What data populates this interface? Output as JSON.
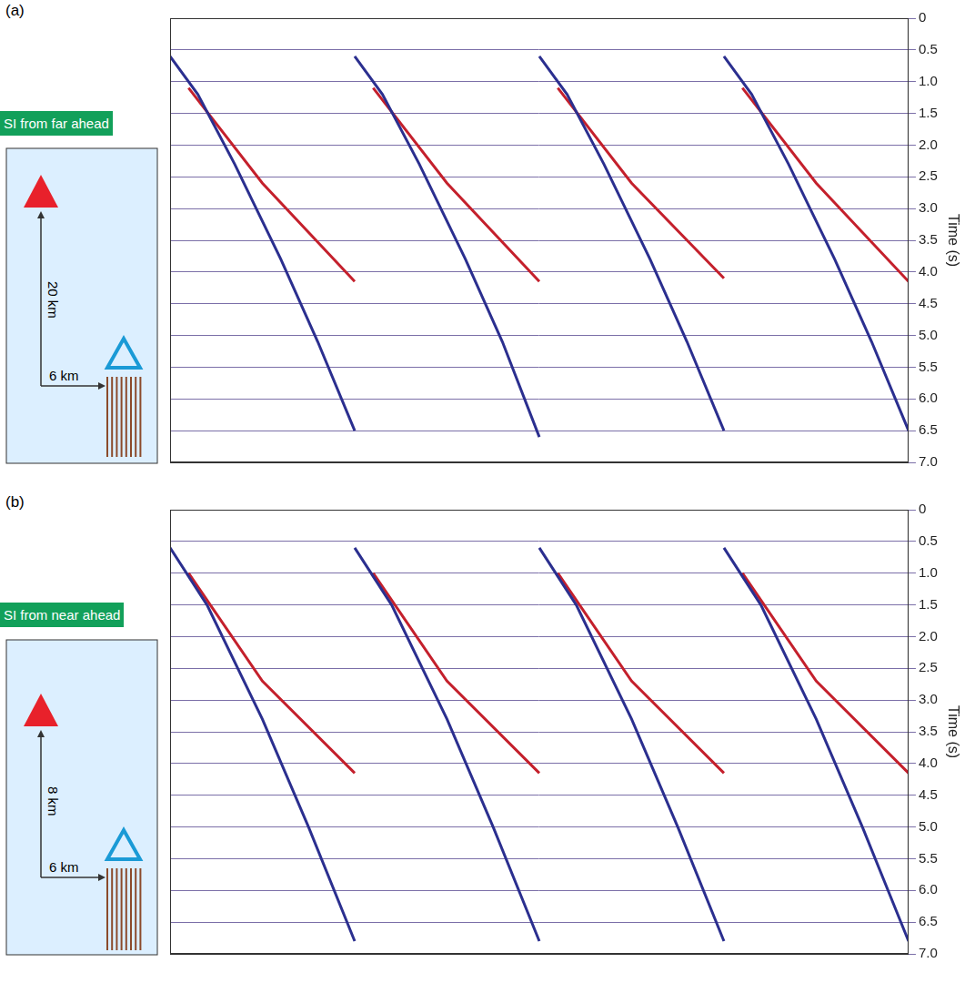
{
  "chart_data": [
    {
      "type": "line",
      "panel_label": "(a)",
      "annotations": {
        "banner": "SI from far ahead",
        "vertical": "20 km",
        "horizontal": "6 km"
      },
      "y_label": "Time (s)",
      "xlim": [
        0,
        4
      ],
      "ylim": [
        0,
        7
      ],
      "yticks": [
        0,
        0.5,
        {
          "value": 1,
          "label": "1.0"
        },
        1.5,
        {
          "value": 2,
          "label": "2.0"
        },
        2.5,
        {
          "value": 3,
          "label": "3.0"
        },
        3.5,
        {
          "value": 4,
          "label": "4.0"
        },
        4.5,
        {
          "value": 5,
          "label": "5.0"
        },
        5.5,
        {
          "value": 6,
          "label": "6.0"
        },
        6.5,
        {
          "value": 7,
          "label": "7.0"
        }
      ],
      "grid": true,
      "tick_labels": "y",
      "series": [
        {
          "color": "#2b2f8f",
          "x": [
            0,
            0.15,
            0.35,
            0.6,
            0.8,
            1.0
          ],
          "values": [
            0.6,
            1.2,
            2.3,
            3.8,
            5.1,
            6.5
          ]
        },
        {
          "color": "#c4202c",
          "x": [
            0.1,
            0.5,
            1.0
          ],
          "values": [
            1.1,
            2.6,
            4.15
          ]
        },
        {
          "color": "#2b2f8f",
          "x": [
            1.0,
            1.15,
            1.35,
            1.6,
            1.8,
            2.0
          ],
          "values": [
            0.6,
            1.2,
            2.3,
            3.8,
            5.1,
            6.6
          ]
        },
        {
          "color": "#c4202c",
          "x": [
            1.1,
            1.5,
            2.0
          ],
          "values": [
            1.1,
            2.6,
            4.15
          ]
        },
        {
          "color": "#2b2f8f",
          "x": [
            2.0,
            2.15,
            2.35,
            2.6,
            2.8,
            3.0
          ],
          "values": [
            0.6,
            1.2,
            2.3,
            3.8,
            5.1,
            6.5
          ]
        },
        {
          "color": "#c4202c",
          "x": [
            2.1,
            2.5,
            3.0
          ],
          "values": [
            1.1,
            2.6,
            4.1
          ]
        },
        {
          "color": "#2b2f8f",
          "x": [
            3.0,
            3.15,
            3.35,
            3.6,
            3.8,
            4.0
          ],
          "values": [
            0.6,
            1.2,
            2.3,
            3.8,
            5.1,
            6.5
          ]
        },
        {
          "color": "#c4202c",
          "x": [
            3.1,
            3.5,
            4.0
          ],
          "values": [
            1.1,
            2.6,
            4.15
          ]
        }
      ]
    },
    {
      "type": "line",
      "panel_label": "(b)",
      "annotations": {
        "banner": "SI from near ahead",
        "vertical": "8 km",
        "horizontal": "6 km"
      },
      "y_label": "Time (s)",
      "xlim": [
        0,
        4
      ],
      "ylim": [
        0,
        7
      ],
      "yticks": [
        0,
        0.5,
        {
          "value": 1,
          "label": "1.0"
        },
        1.5,
        {
          "value": 2,
          "label": "2.0"
        },
        2.5,
        {
          "value": 3,
          "label": "3.0"
        },
        3.5,
        {
          "value": 4,
          "label": "4.0"
        },
        4.5,
        {
          "value": 5,
          "label": "5.0"
        },
        5.5,
        {
          "value": 6,
          "label": "6.0"
        },
        6.5,
        {
          "value": 7,
          "label": "7.0"
        }
      ],
      "grid": true,
      "tick_labels": "y",
      "series": [
        {
          "color": "#2b2f8f",
          "x": [
            0,
            0.2,
            0.5,
            0.75,
            1.0
          ],
          "values": [
            0.6,
            1.5,
            3.3,
            5.0,
            6.8
          ]
        },
        {
          "color": "#c4202c",
          "x": [
            0.1,
            0.5,
            1.0
          ],
          "values": [
            1.0,
            2.7,
            4.15
          ]
        },
        {
          "color": "#2b2f8f",
          "x": [
            1.0,
            1.2,
            1.5,
            1.75,
            2.0
          ],
          "values": [
            0.6,
            1.5,
            3.3,
            5.0,
            6.8
          ]
        },
        {
          "color": "#c4202c",
          "x": [
            1.1,
            1.5,
            2.0
          ],
          "values": [
            1.0,
            2.7,
            4.15
          ]
        },
        {
          "color": "#2b2f8f",
          "x": [
            2.0,
            2.2,
            2.5,
            2.75,
            3.0
          ],
          "values": [
            0.6,
            1.5,
            3.3,
            5.0,
            6.8
          ]
        },
        {
          "color": "#c4202c",
          "x": [
            2.1,
            2.5,
            3.0
          ],
          "values": [
            1.0,
            2.7,
            4.15
          ]
        },
        {
          "color": "#2b2f8f",
          "x": [
            3.0,
            3.2,
            3.5,
            3.75,
            4.0
          ],
          "values": [
            0.6,
            1.5,
            3.3,
            5.0,
            6.8
          ]
        },
        {
          "color": "#c4202c",
          "x": [
            3.1,
            3.5,
            4.0
          ],
          "values": [
            1.0,
            2.7,
            4.15
          ]
        }
      ]
    }
  ]
}
